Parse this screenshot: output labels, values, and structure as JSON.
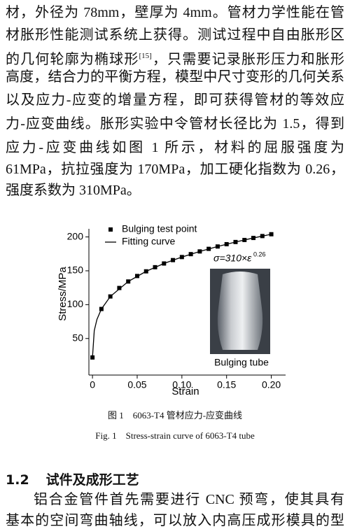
{
  "body_text": [
    [
      "材，外径为 78mm，壁厚为 4mm。管材力学性能在管"
    ],
    [
      "材胀形性能测试系统上获得。测试过程中自由胀形区"
    ],
    [
      "的几何轮廓为椭球形",
      "[15]",
      "，只需要记录胀形压力和胀形"
    ],
    [
      "高度，结合力的平衡方程，模型中尺寸变形的几何关系"
    ],
    [
      "以及应力-应变的增量方程，即可获得管材的等效应"
    ],
    [
      "力-应变曲线。胀形实验中令管材长径比为 1.5，得到"
    ],
    [
      "应力-应变曲线如图 1 所示，材料的屈服强度为"
    ],
    [
      "61MPa，抗拉强度为 170MPa，加工硬化指数为 0.26，"
    ],
    [
      "强度系数为 310MPa。"
    ]
  ],
  "chart_data": {
    "type": "scatter-fit",
    "x_label": "Strain",
    "y_label": "Stress/MPa",
    "xlim": [
      -0.004,
      0.216
    ],
    "ylim": [
      -4,
      212
    ],
    "xticks": [
      0,
      0.05,
      {
        "value": 0.1,
        "label": "0.10"
      },
      0.15,
      {
        "value": 0.2,
        "label": "0.20"
      }
    ],
    "yticks": [
      50,
      100,
      150,
      200
    ],
    "legend": "upper left",
    "annotation": [
      "σ=310×ε",
      "0.26"
    ],
    "inset_label": "Bulging tube",
    "series": [
      {
        "name": "Bulging test point",
        "color": "#000000",
        "marker": "square",
        "x": [
          0,
          0.01,
          0.02,
          0.03,
          0.04,
          0.05,
          0.06,
          0.07,
          0.08,
          0.09,
          0.1,
          0.11,
          0.12,
          0.13,
          0.14,
          0.15,
          0.16,
          0.17,
          0.18,
          0.19,
          0.2
        ],
        "values": [
          22,
          93.6,
          112.1,
          124.6,
          134.2,
          142.3,
          149.2,
          155.3,
          160.8,
          165.8,
          170.3,
          174.6,
          178.6,
          182.4,
          185.9,
          189.3,
          192.5,
          195.5,
          198.5,
          201.3,
          204
        ]
      },
      {
        "name": "Fitting curve",
        "color": "#000000",
        "marker": "line",
        "x": [
          0,
          0.002,
          0.005,
          0.01,
          0.02,
          0.04,
          0.06,
          0.08,
          0.1,
          0.12,
          0.14,
          0.16,
          0.18,
          0.2
        ],
        "values": [
          22,
          61.6,
          78.2,
          93.6,
          112.1,
          134.2,
          149.2,
          160.8,
          170.3,
          178.6,
          185.9,
          192.5,
          198.5,
          204
        ]
      }
    ]
  },
  "figure_caption_cn": "图 1　6063-T4 管材应力-应变曲线",
  "figure_caption_en": "Fig. 1　Stress-strain curve of 6063-T4 tube",
  "section": {
    "number": "1.2",
    "title": "试件及成形工艺"
  },
  "next_text": [
    "铝合金管件首先需要进行 CNC 预弯，使其具有",
    "基本的空间弯曲轴线，可以放入内高压成形模具的型"
  ]
}
